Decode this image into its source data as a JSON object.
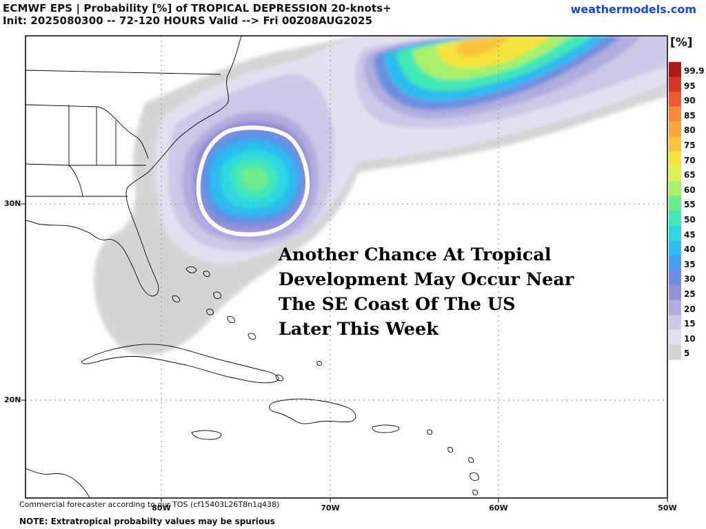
{
  "header": {
    "title": "ECMWF EPS | Probability [%] of TROPICAL DEPRESSION 20-knots+",
    "subtitle": "Init: 2025080300 -- 72-120 HOURS Valid --> Fri 00Z08AUG2025",
    "brand": "weathermodels.com"
  },
  "map": {
    "region": "Southeast US / Western Atlantic / Caribbean",
    "annotation": [
      "Another Chance At Tropical",
      "Development May Occur Near",
      "The SE Coast Of The US",
      "Later This Week"
    ],
    "highlight": "white-circle-outline",
    "lon_labels": [
      "80W",
      "70W",
      "60W",
      "50W"
    ],
    "lat_labels": [
      "30N",
      "20N"
    ]
  },
  "colorbar": {
    "unit": "[%]",
    "levels": [
      "99.9",
      "95",
      "90",
      "85",
      "80",
      "75",
      "70",
      "65",
      "60",
      "55",
      "50",
      "45",
      "40",
      "35",
      "30",
      "25",
      "20",
      "15",
      "10",
      "5"
    ],
    "colors": [
      "#b2171b",
      "#d8342a",
      "#ec5c35",
      "#f48a3b",
      "#f7a63a",
      "#fac43a",
      "#f4e43a",
      "#dcf24a",
      "#a8f06a",
      "#6eec8e",
      "#42e8b4",
      "#2ed8e0",
      "#2cbcf0",
      "#46a0ec",
      "#6e8ee0",
      "#9490d6",
      "#b0acde",
      "#cbc8e8",
      "#e2e0ef",
      "#d4d4d4"
    ]
  },
  "footer": {
    "note1": "Commercial forecaster according to our TOS (cf15403L26T8n1q438)",
    "note2": "NOTE: Extratropical probabilty values may be spurious"
  }
}
